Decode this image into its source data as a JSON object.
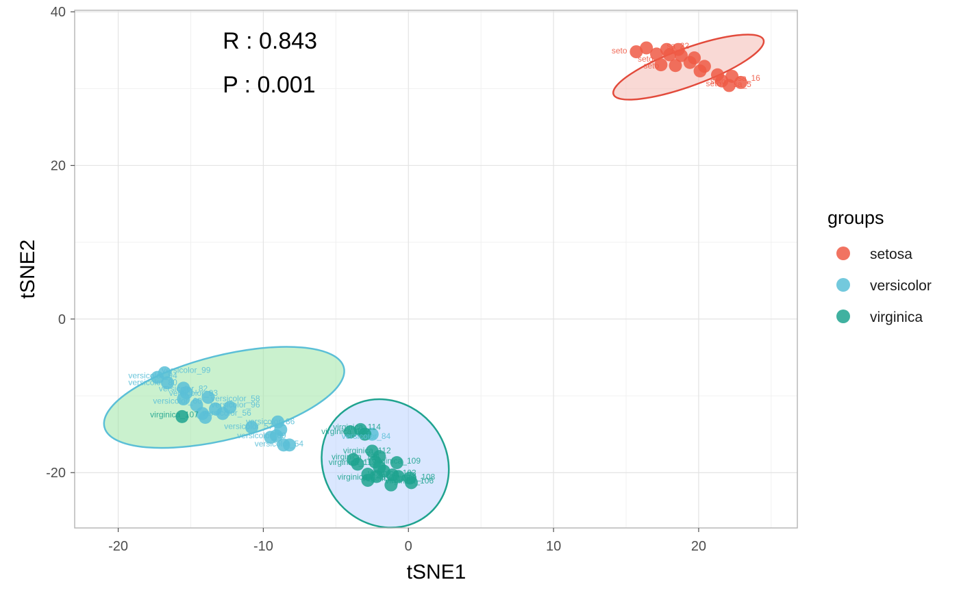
{
  "chart_data": {
    "type": "scatter",
    "xlabel": "tSNE1",
    "ylabel": "tSNE2",
    "xlim": [
      -23,
      26.8
    ],
    "ylim": [
      -27.2,
      40.2
    ],
    "x_ticks": [
      -20,
      -10,
      0,
      10,
      20
    ],
    "y_ticks": [
      -20,
      0,
      20,
      40
    ],
    "grid": true,
    "annotations": [
      {
        "id": "r",
        "text": "R : 0.843",
        "x": -12.8,
        "y": 35.2
      },
      {
        "id": "p",
        "text": "P : 0.001",
        "x": -12.8,
        "y": 29.5
      }
    ],
    "legend": {
      "title": "groups",
      "position": "right",
      "entries": [
        {
          "name": "setosa",
          "color": "#ee5a45"
        },
        {
          "name": "versicolor",
          "color": "#5bbfd7"
        },
        {
          "name": "virginica",
          "color": "#1fa38f"
        }
      ]
    },
    "ellipses": [
      {
        "group": "setosa",
        "cx": 19.3,
        "cy": 32.8,
        "rx": 5.5,
        "ry": 1.3,
        "angle_deg": 20,
        "stroke": "#e24a3b",
        "fill": "#f4b9b2"
      },
      {
        "group": "versicolor",
        "cx": -12.7,
        "cy": -10.2,
        "rx": 8.5,
        "ry": 2.9,
        "angle_deg": 14,
        "stroke": "#5bbfd7",
        "fill": "#9fe6a6"
      },
      {
        "group": "virginica",
        "cx": -1.6,
        "cy": -18.8,
        "rx": 4.2,
        "ry": 4.6,
        "angle_deg": 42,
        "stroke": "#1fa38f",
        "fill": "#bcd3ff"
      }
    ],
    "series": [
      {
        "name": "setosa",
        "color": "#ee5a45",
        "points": [
          {
            "x": 15.7,
            "y": 34.8
          },
          {
            "x": 16.4,
            "y": 35.3
          },
          {
            "x": 17.1,
            "y": 34.5
          },
          {
            "x": 17.4,
            "y": 33.1
          },
          {
            "x": 17.8,
            "y": 35.1
          },
          {
            "x": 18.0,
            "y": 34.4
          },
          {
            "x": 18.4,
            "y": 33.0
          },
          {
            "x": 18.6,
            "y": 35.1
          },
          {
            "x": 18.8,
            "y": 34.3
          },
          {
            "x": 19.4,
            "y": 33.4
          },
          {
            "x": 19.7,
            "y": 34.0
          },
          {
            "x": 20.1,
            "y": 32.3
          },
          {
            "x": 20.4,
            "y": 32.9
          },
          {
            "x": 21.3,
            "y": 31.8
          },
          {
            "x": 21.6,
            "y": 31.0
          },
          {
            "x": 22.1,
            "y": 30.4
          },
          {
            "x": 22.3,
            "y": 31.6
          },
          {
            "x": 22.9,
            "y": 30.8
          }
        ],
        "labels": [
          {
            "text": "seto",
            "x": 14.0,
            "y": 34.6
          },
          {
            "text": "sa_22",
            "x": 17.8,
            "y": 35.2
          },
          {
            "text": "seto",
            "x": 15.8,
            "y": 33.5
          },
          {
            "text": "seto",
            "x": 16.2,
            "y": 32.6
          },
          {
            "text": "sa_16",
            "x": 22.7,
            "y": 31.0
          },
          {
            "text": "seto",
            "x": 20.8,
            "y": 30.6
          },
          {
            "text": "seto",
            "x": 20.5,
            "y": 30.3
          },
          {
            "text": "sa_5",
            "x": 22.4,
            "y": 30.2
          }
        ]
      },
      {
        "name": "versicolor",
        "color": "#5bbfd7",
        "points": [
          {
            "x": -17.3,
            "y": -7.6
          },
          {
            "x": -16.8,
            "y": -7.0
          },
          {
            "x": -16.6,
            "y": -8.3
          },
          {
            "x": -15.5,
            "y": -9.0
          },
          {
            "x": -15.3,
            "y": -9.6
          },
          {
            "x": -15.5,
            "y": -10.4
          },
          {
            "x": -14.6,
            "y": -11.2
          },
          {
            "x": -14.2,
            "y": -12.3
          },
          {
            "x": -13.8,
            "y": -10.2
          },
          {
            "x": -13.3,
            "y": -11.7
          },
          {
            "x": -12.8,
            "y": -12.3
          },
          {
            "x": -12.3,
            "y": -11.5
          },
          {
            "x": -10.8,
            "y": -14.1
          },
          {
            "x": -9.5,
            "y": -15.4
          },
          {
            "x": -9.1,
            "y": -15.2
          },
          {
            "x": -8.8,
            "y": -14.4
          },
          {
            "x": -8.6,
            "y": -16.4
          },
          {
            "x": -8.2,
            "y": -16.4
          },
          {
            "x": -9.0,
            "y": -13.4
          },
          {
            "x": -14.0,
            "y": -12.8
          },
          {
            "x": -2.5,
            "y": -15.0
          }
        ],
        "labels": [
          {
            "text": "versicolor_99",
            "x": -17.0,
            "y": -7.0
          },
          {
            "text": "versicolor_94",
            "x": -19.3,
            "y": -7.7
          },
          {
            "text": "versicolor_80",
            "x": -19.3,
            "y": -8.6
          },
          {
            "text": "versicolor_82",
            "x": -17.2,
            "y": -9.4
          },
          {
            "text": "versicolor_93",
            "x": -16.5,
            "y": -10.0
          },
          {
            "text": "versicolor_58",
            "x": -13.6,
            "y": -10.7
          },
          {
            "text": "versicolor_60",
            "x": -17.6,
            "y": -11.0
          },
          {
            "text": "versicolor_96",
            "x": -13.6,
            "y": -11.5
          },
          {
            "text": "versicolor_56",
            "x": -14.2,
            "y": -12.6
          },
          {
            "text": "versicolor_86",
            "x": -11.2,
            "y": -13.7
          },
          {
            "text": "versicolor_57",
            "x": -12.7,
            "y": -14.3
          },
          {
            "text": "versicolor_69",
            "x": -11.8,
            "y": -15.5
          },
          {
            "text": "versicolor_54",
            "x": -10.6,
            "y": -16.6
          },
          {
            "text": "versicolor_84",
            "x": -4.6,
            "y": -15.6
          }
        ]
      },
      {
        "name": "virginica",
        "color": "#1fa38f",
        "points": [
          {
            "x": -15.6,
            "y": -12.7
          },
          {
            "x": -4.0,
            "y": -14.7
          },
          {
            "x": -3.3,
            "y": -14.4
          },
          {
            "x": -3.0,
            "y": -15.0
          },
          {
            "x": -2.5,
            "y": -17.2
          },
          {
            "x": -2.0,
            "y": -17.9
          },
          {
            "x": -3.8,
            "y": -18.3
          },
          {
            "x": -3.5,
            "y": -18.9
          },
          {
            "x": -2.3,
            "y": -18.6
          },
          {
            "x": -2.0,
            "y": -19.3
          },
          {
            "x": -1.7,
            "y": -19.8
          },
          {
            "x": -0.8,
            "y": -18.7
          },
          {
            "x": -1.1,
            "y": -20.3
          },
          {
            "x": -0.7,
            "y": -20.5
          },
          {
            "x": -2.2,
            "y": -20.5
          },
          {
            "x": -2.8,
            "y": -21.0
          },
          {
            "x": -1.2,
            "y": -21.6
          },
          {
            "x": 0.1,
            "y": -20.7
          },
          {
            "x": 0.2,
            "y": -21.3
          },
          {
            "x": -2.8,
            "y": -20.2
          }
        ],
        "labels": [
          {
            "text": "virginica_107",
            "x": -17.8,
            "y": -12.8
          },
          {
            "text": "virginica_114",
            "x": -5.2,
            "y": -14.4
          },
          {
            "text": "virginica_122",
            "x": -6.0,
            "y": -15.0
          },
          {
            "text": "virginica_112",
            "x": -4.5,
            "y": -17.5
          },
          {
            "text": "virginica_124",
            "x": -5.3,
            "y": -18.3
          },
          {
            "text": "virginica_109",
            "x": -2.5,
            "y": -18.8
          },
          {
            "text": "virginica_113",
            "x": -5.5,
            "y": -19.0
          },
          {
            "text": "virginica_103",
            "x": -2.8,
            "y": -20.4
          },
          {
            "text": "virginica_108",
            "x": -1.5,
            "y": -20.9
          },
          {
            "text": "virginica_148",
            "x": -4.9,
            "y": -20.9
          },
          {
            "text": "virginica_105",
            "x": -3.2,
            "y": -21.1
          },
          {
            "text": "virginica_106",
            "x": -1.6,
            "y": -21.4
          }
        ]
      }
    ]
  }
}
